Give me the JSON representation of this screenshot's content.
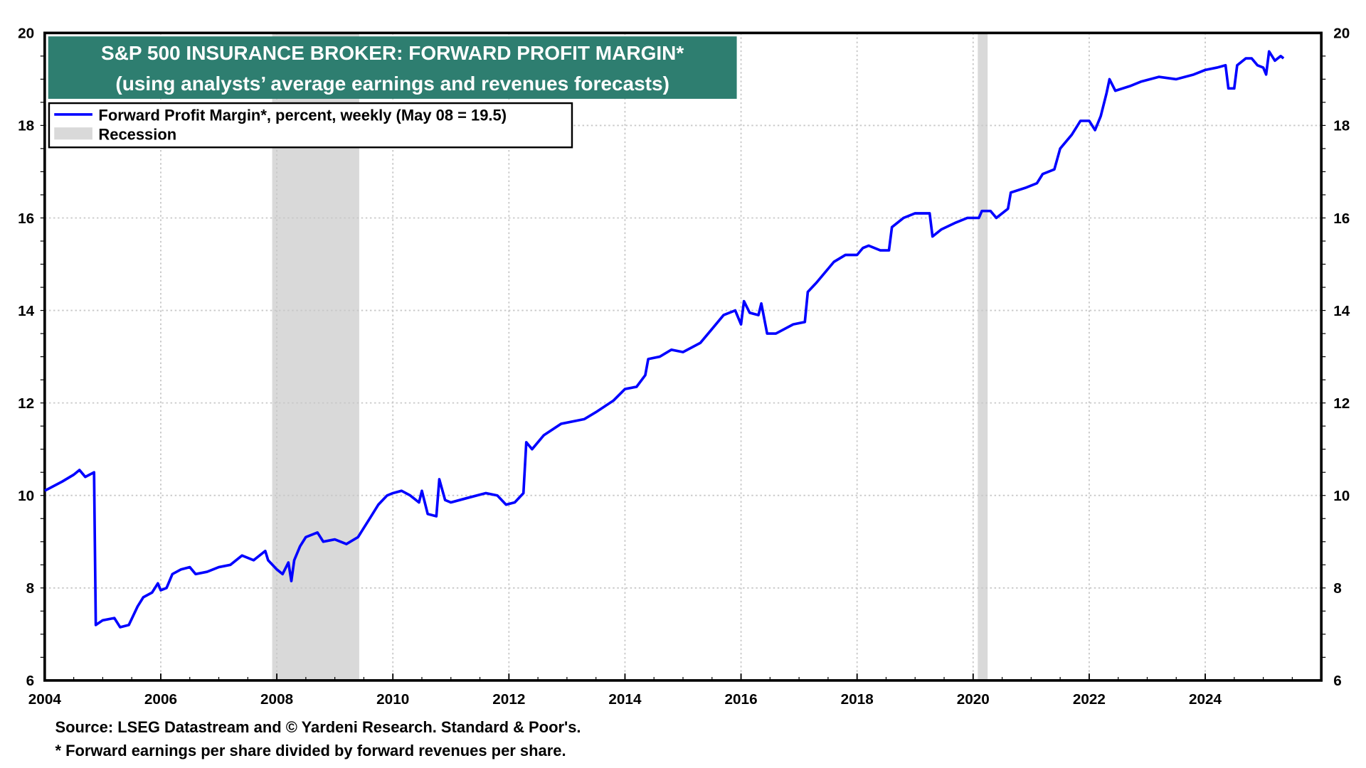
{
  "chart_data": {
    "type": "line",
    "title": "S&P 500 INSURANCE BROKER: FORWARD PROFIT MARGIN*",
    "subtitle": "(using analysts’ average earnings and revenues forecasts)",
    "xlim": [
      2004,
      2026
    ],
    "ylim": [
      6,
      20
    ],
    "x_ticks": [
      "2004",
      "2006",
      "2008",
      "2010",
      "2012",
      "2014",
      "2016",
      "2018",
      "2020",
      "2022",
      "2024"
    ],
    "y_ticks": [
      "6",
      "8",
      "10",
      "12",
      "14",
      "16",
      "18",
      "20"
    ],
    "grid": true,
    "legend_placement": "top-left",
    "legend": [
      "Forward Profit Margin*, percent, weekly (May 08 = 19.5)",
      "Recession"
    ],
    "recessions": [
      [
        2007.92,
        2009.42
      ],
      [
        2020.08,
        2020.25
      ]
    ],
    "series": [
      {
        "name": "Forward Profit Margin",
        "color": "#0000ff",
        "x": [
          2004.0,
          2004.3,
          2004.5,
          2004.6,
          2004.7,
          2004.85,
          2004.88,
          2005.0,
          2005.2,
          2005.3,
          2005.45,
          2005.6,
          2005.7,
          2005.85,
          2005.95,
          2006.0,
          2006.1,
          2006.2,
          2006.35,
          2006.5,
          2006.6,
          2006.8,
          2007.0,
          2007.2,
          2007.4,
          2007.6,
          2007.8,
          2007.85,
          2008.0,
          2008.1,
          2008.2,
          2008.25,
          2008.3,
          2008.4,
          2008.5,
          2008.7,
          2008.8,
          2009.0,
          2009.2,
          2009.4,
          2009.6,
          2009.75,
          2009.9,
          2010.0,
          2010.15,
          2010.3,
          2010.45,
          2010.5,
          2010.6,
          2010.75,
          2010.8,
          2010.9,
          2011.0,
          2011.3,
          2011.6,
          2011.8,
          2011.95,
          2012.1,
          2012.25,
          2012.3,
          2012.4,
          2012.6,
          2012.9,
          2013.3,
          2013.5,
          2013.8,
          2014.0,
          2014.2,
          2014.35,
          2014.4,
          2014.6,
          2014.8,
          2015.0,
          2015.3,
          2015.5,
          2015.7,
          2015.9,
          2016.0,
          2016.05,
          2016.15,
          2016.3,
          2016.35,
          2016.45,
          2016.6,
          2016.9,
          2017.1,
          2017.15,
          2017.3,
          2017.5,
          2017.6,
          2017.8,
          2018.0,
          2018.1,
          2018.2,
          2018.4,
          2018.55,
          2018.6,
          2018.8,
          2019.0,
          2019.25,
          2019.3,
          2019.45,
          2019.7,
          2019.9,
          2020.1,
          2020.15,
          2020.3,
          2020.4,
          2020.6,
          2020.65,
          2020.9,
          2021.1,
          2021.2,
          2021.4,
          2021.5,
          2021.7,
          2021.85,
          2022.0,
          2022.1,
          2022.2,
          2022.3,
          2022.35,
          2022.45,
          2022.7,
          2022.9,
          2023.2,
          2023.5,
          2023.8,
          2024.0,
          2024.2,
          2024.35,
          2024.4,
          2024.5,
          2024.55,
          2024.7,
          2024.8,
          2024.9,
          2025.0,
          2025.05,
          2025.1,
          2025.2,
          2025.3,
          2025.35
        ],
        "y": [
          10.1,
          10.3,
          10.45,
          10.55,
          10.4,
          10.5,
          7.2,
          7.3,
          7.35,
          7.15,
          7.2,
          7.6,
          7.8,
          7.9,
          8.1,
          7.95,
          8.0,
          8.3,
          8.4,
          8.45,
          8.3,
          8.35,
          8.45,
          8.5,
          8.7,
          8.6,
          8.8,
          8.6,
          8.4,
          8.3,
          8.55,
          8.15,
          8.6,
          8.9,
          9.1,
          9.2,
          9.0,
          9.05,
          8.95,
          9.1,
          9.5,
          9.8,
          10.0,
          10.05,
          10.1,
          10.0,
          9.85,
          10.1,
          9.6,
          9.55,
          10.35,
          9.9,
          9.85,
          9.95,
          10.05,
          10.0,
          9.8,
          9.85,
          10.05,
          11.15,
          11.0,
          11.3,
          11.55,
          11.65,
          11.8,
          12.05,
          12.3,
          12.35,
          12.6,
          12.95,
          13.0,
          13.15,
          13.1,
          13.3,
          13.6,
          13.9,
          14.0,
          13.7,
          14.2,
          13.95,
          13.9,
          14.15,
          13.5,
          13.5,
          13.7,
          13.75,
          14.4,
          14.6,
          14.9,
          15.05,
          15.2,
          15.2,
          15.35,
          15.4,
          15.3,
          15.3,
          15.8,
          16.0,
          16.1,
          16.1,
          15.6,
          15.75,
          15.9,
          16.0,
          16.0,
          16.15,
          16.15,
          16.0,
          16.2,
          16.55,
          16.65,
          16.75,
          16.95,
          17.05,
          17.5,
          17.8,
          18.1,
          18.1,
          17.9,
          18.2,
          18.7,
          19.0,
          18.75,
          18.85,
          18.95,
          19.05,
          19.0,
          19.1,
          19.2,
          19.25,
          19.3,
          18.8,
          18.8,
          19.3,
          19.45,
          19.45,
          19.3,
          19.25,
          19.1,
          19.6,
          19.4,
          19.5,
          19.45
        ]
      }
    ]
  },
  "footer": {
    "source": "Source: LSEG Datastream and © Yardeni Research. Standard & Poor's.",
    "note": "* Forward earnings per share divided by forward revenues per share."
  },
  "colors": {
    "title_bg": "#2e7e70",
    "line": "#0000ff",
    "recession": "#d9d9d9"
  }
}
